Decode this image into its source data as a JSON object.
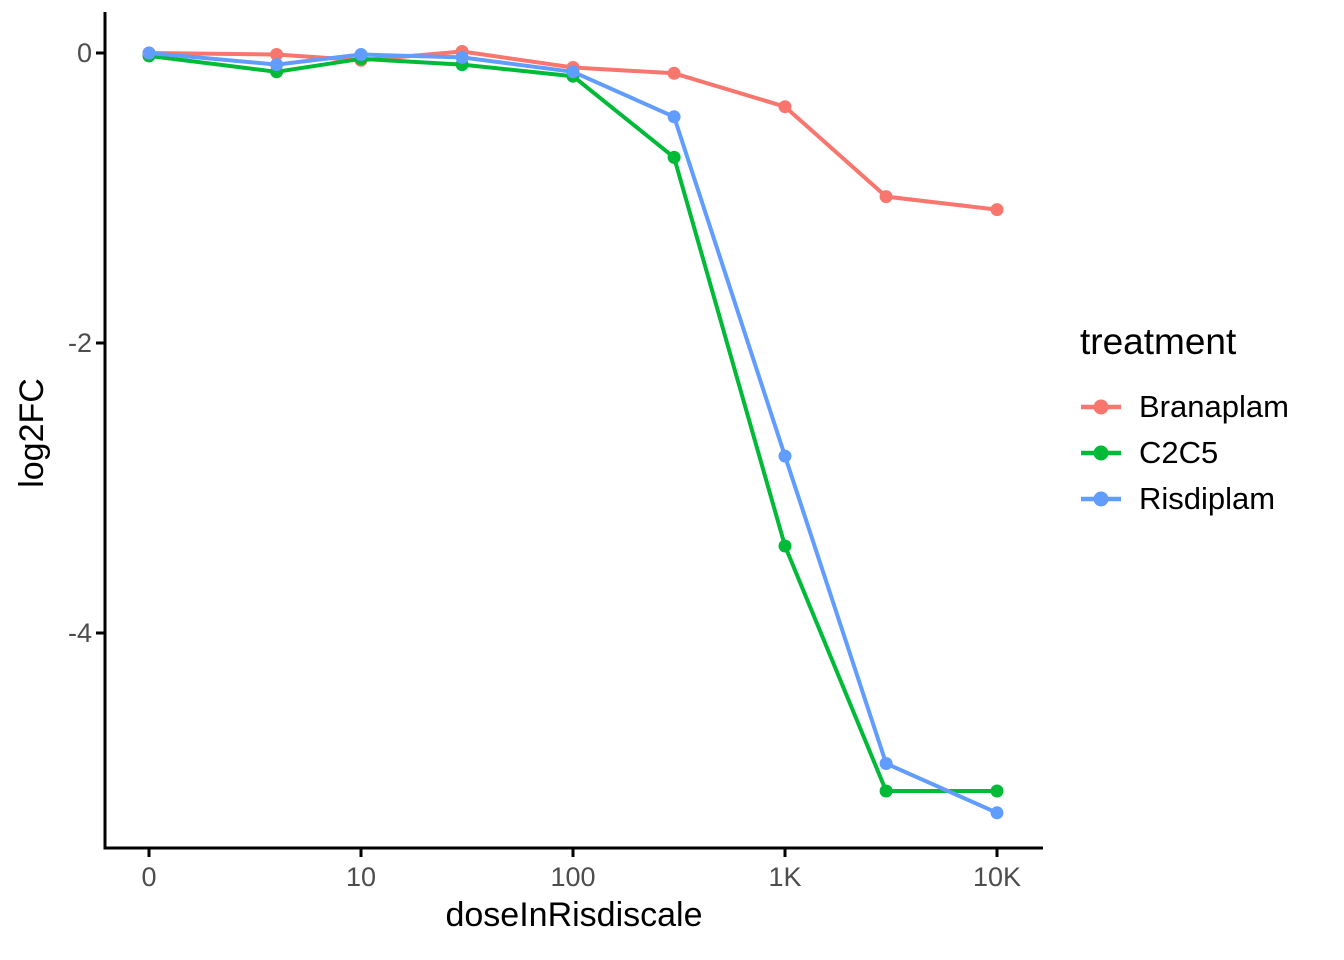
{
  "chart_data": {
    "type": "line",
    "title": "",
    "xlabel": "doseInRisdiscale",
    "ylabel": "log2FC",
    "x_scale": "log10 (dose 0 plotted at axis origin)",
    "x_doses": [
      0,
      4,
      10,
      30,
      100,
      300,
      1000,
      3000,
      10000
    ],
    "x_tick_values": [
      0,
      10,
      100,
      1000,
      10000
    ],
    "x_tick_labels": [
      "0",
      "10",
      "100",
      "1K",
      "10K"
    ],
    "y_tick_values": [
      0,
      -2,
      -4
    ],
    "y_tick_labels": [
      "0",
      "-2",
      "-4"
    ],
    "ylim": [
      -5.5,
      0.28
    ],
    "grid": false,
    "theme": "classic (left and bottom axis lines only)",
    "legend_position": "right",
    "legend_title": "treatment",
    "series": [
      {
        "name": "Branaplam",
        "color": "#F8766D",
        "values": [
          0.0,
          -0.01,
          -0.05,
          0.01,
          -0.1,
          -0.14,
          -0.37,
          -0.99,
          -1.08
        ]
      },
      {
        "name": "C2C5",
        "color": "#00BA38",
        "values": [
          -0.02,
          -0.13,
          -0.04,
          -0.08,
          -0.16,
          -0.72,
          -3.4,
          -5.09,
          -5.09
        ]
      },
      {
        "name": "Risdiplam",
        "color": "#619CFF",
        "values": [
          0.0,
          -0.08,
          -0.01,
          -0.03,
          -0.13,
          -0.44,
          -2.78,
          -4.9,
          -5.24
        ]
      }
    ]
  }
}
